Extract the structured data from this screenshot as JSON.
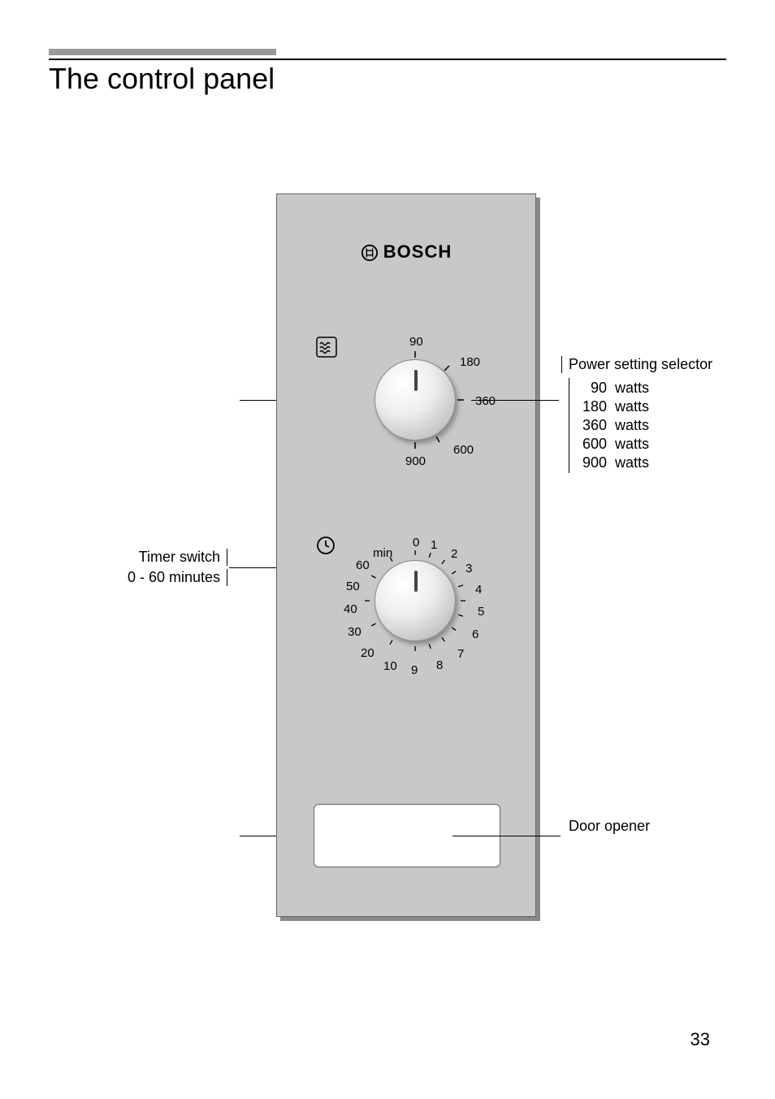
{
  "page": {
    "title": "The control panel",
    "number": "33"
  },
  "brand": {
    "name": "BOSCH"
  },
  "power_dial": {
    "labels": [
      "90",
      "180",
      "360",
      "600",
      "900"
    ],
    "angles_deg": [
      0,
      45,
      90,
      150,
      180
    ],
    "callout_title": "Power setting selector",
    "options": [
      {
        "value": "90",
        "unit": "watts"
      },
      {
        "value": "180",
        "unit": "watts"
      },
      {
        "value": "360",
        "unit": "watts"
      },
      {
        "value": "600",
        "unit": "watts"
      },
      {
        "value": "900",
        "unit": "watts"
      }
    ]
  },
  "timer_dial": {
    "min_label": "min",
    "labels": [
      "0",
      "1",
      "2",
      "3",
      "4",
      "5",
      "6",
      "7",
      "8",
      "9",
      "10",
      "20",
      "30",
      "40",
      "50",
      "60"
    ],
    "callout_title": "Timer switch",
    "callout_sub": "0 - 60 minutes"
  },
  "door": {
    "callout": "Door opener"
  },
  "colors": {
    "panel": "#c8c8c8",
    "accent": "#999999"
  }
}
